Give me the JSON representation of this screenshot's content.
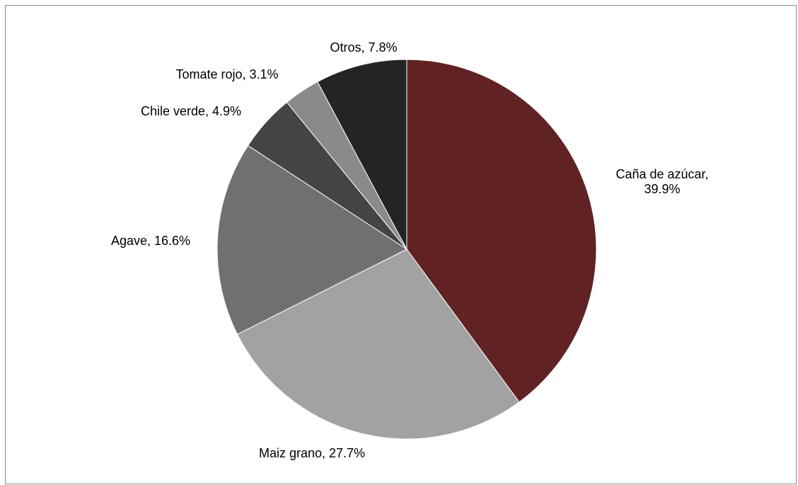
{
  "chart_data": {
    "type": "pie",
    "title": "",
    "slices": [
      {
        "label": "Caña de azúcar",
        "value": 39.9,
        "label_lines": [
          "Caña de azúcar,",
          "39.9%"
        ],
        "color": "#612224"
      },
      {
        "label": "Maiz grano",
        "value": 27.7,
        "label_lines": [
          "Maiz grano, 27.7%"
        ],
        "color": "#a2a2a2"
      },
      {
        "label": "Agave",
        "value": 16.6,
        "label_lines": [
          "Agave, 16.6%"
        ],
        "color": "#707070"
      },
      {
        "label": "Chile verde",
        "value": 4.9,
        "label_lines": [
          "Chile verde, 4.9%"
        ],
        "color": "#444444"
      },
      {
        "label": "Tomate rojo",
        "value": 3.1,
        "label_lines": [
          "Tomate rojo, 3.1%"
        ],
        "color": "#8a8a8a"
      },
      {
        "label": "Otros",
        "value": 7.8,
        "label_lines": [
          "Otros, 7.8%"
        ],
        "color": "#242424"
      }
    ],
    "legend": "none",
    "label_position": "outside"
  }
}
